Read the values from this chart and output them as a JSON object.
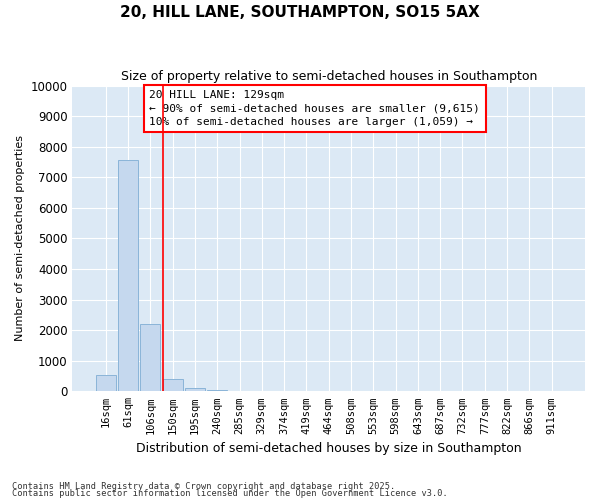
{
  "title1": "20, HILL LANE, SOUTHAMPTON, SO15 5AX",
  "title2": "Size of property relative to semi-detached houses in Southampton",
  "xlabel": "Distribution of semi-detached houses by size in Southampton",
  "ylabel": "Number of semi-detached properties",
  "bar_labels": [
    "16sqm",
    "61sqm",
    "106sqm",
    "150sqm",
    "195sqm",
    "240sqm",
    "285sqm",
    "329sqm",
    "374sqm",
    "419sqm",
    "464sqm",
    "508sqm",
    "553sqm",
    "598sqm",
    "643sqm",
    "687sqm",
    "732sqm",
    "777sqm",
    "822sqm",
    "866sqm",
    "911sqm"
  ],
  "bar_values": [
    520,
    7580,
    2200,
    390,
    105,
    30,
    12,
    7,
    5,
    3,
    2,
    2,
    1,
    1,
    1,
    1,
    1,
    1,
    1,
    1,
    1
  ],
  "bar_color": "#c5d8ee",
  "bar_edge_color": "#8ab4d8",
  "plot_bg_color": "#dce9f5",
  "fig_bg_color": "#ffffff",
  "grid_color": "#ffffff",
  "red_line_x": 2.58,
  "property_label": "20 HILL LANE: 129sqm",
  "annotation_line1": "← 90% of semi-detached houses are smaller (9,615)",
  "annotation_line2": "10% of semi-detached houses are larger (1,059) →",
  "ylim": [
    0,
    10000
  ],
  "yticks": [
    0,
    1000,
    2000,
    3000,
    4000,
    5000,
    6000,
    7000,
    8000,
    9000,
    10000
  ],
  "footer1": "Contains HM Land Registry data © Crown copyright and database right 2025.",
  "footer2": "Contains public sector information licensed under the Open Government Licence v3.0."
}
